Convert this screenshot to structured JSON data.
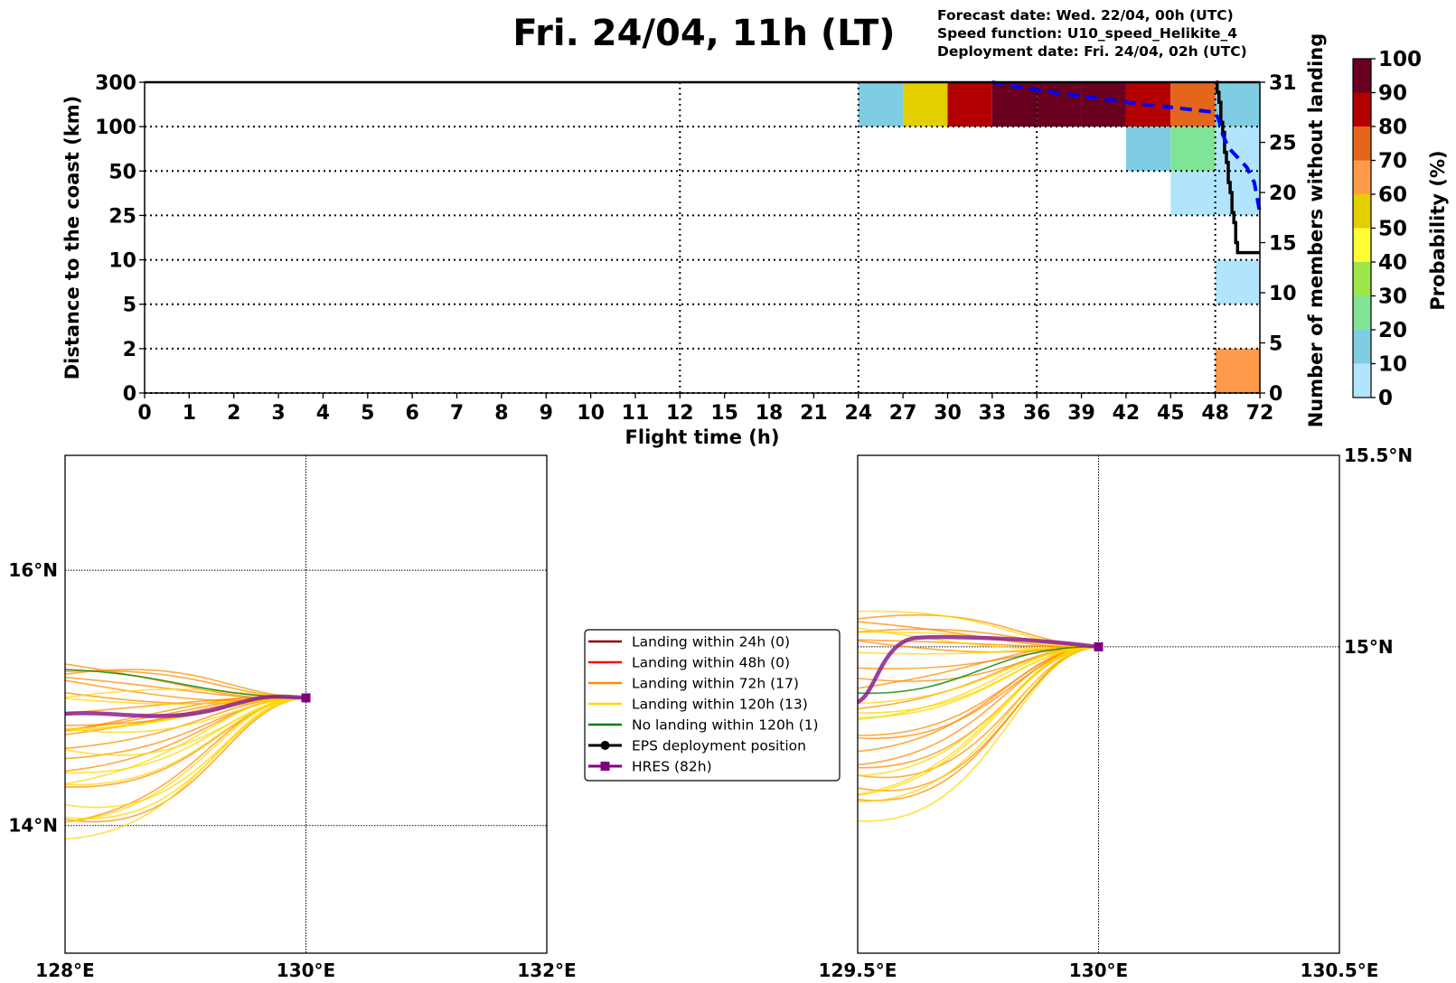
{
  "header": {
    "title": "Fri. 24/04, 11h (LT)",
    "info": [
      "Forecast date: Wed. 22/04, 00h (UTC)",
      "Speed function: U10_speed_Helikite_4",
      "Deployment date: Fri. 24/04, 02h (UTC)"
    ]
  },
  "chart_data": [
    {
      "type": "heatmap",
      "name": "landing-probability",
      "xlabel": "Flight time (h)",
      "ylabel": "Distance to the coast (km)",
      "y2label": "Number of members without landing",
      "x_ticks": [
        "0",
        "1",
        "2",
        "3",
        "4",
        "5",
        "6",
        "7",
        "8",
        "9",
        "10",
        "11",
        "12",
        "15",
        "18",
        "21",
        "24",
        "27",
        "30",
        "33",
        "36",
        "39",
        "42",
        "45",
        "48",
        "72"
      ],
      "y_ticks": [
        "0",
        "2",
        "5",
        "10",
        "25",
        "50",
        "100",
        "300"
      ],
      "y2_ticks": [
        "0",
        "5",
        "10",
        "15",
        "20",
        "25",
        "31"
      ],
      "y2_range": [
        0,
        31
      ],
      "grid": "dotted",
      "x_grid_at": [
        "12",
        "24",
        "36",
        "48"
      ],
      "cells": [
        {
          "x_bin": [
            "24",
            "27"
          ],
          "y_bin": [
            "100",
            "300"
          ],
          "prob_pct": 15
        },
        {
          "x_bin": [
            "27",
            "30"
          ],
          "y_bin": [
            "100",
            "300"
          ],
          "prob_pct": 55
        },
        {
          "x_bin": [
            "30",
            "33"
          ],
          "y_bin": [
            "100",
            "300"
          ],
          "prob_pct": 85
        },
        {
          "x_bin": [
            "33",
            "36"
          ],
          "y_bin": [
            "100",
            "300"
          ],
          "prob_pct": 95
        },
        {
          "x_bin": [
            "36",
            "39"
          ],
          "y_bin": [
            "100",
            "300"
          ],
          "prob_pct": 95
        },
        {
          "x_bin": [
            "39",
            "42"
          ],
          "y_bin": [
            "100",
            "300"
          ],
          "prob_pct": 95
        },
        {
          "x_bin": [
            "42",
            "45"
          ],
          "y_bin": [
            "100",
            "300"
          ],
          "prob_pct": 85
        },
        {
          "x_bin": [
            "45",
            "48"
          ],
          "y_bin": [
            "100",
            "300"
          ],
          "prob_pct": 75
        },
        {
          "x_bin": [
            "48",
            "72"
          ],
          "y_bin": [
            "100",
            "300"
          ],
          "prob_pct": 15
        },
        {
          "x_bin": [
            "42",
            "45"
          ],
          "y_bin": [
            "50",
            "100"
          ],
          "prob_pct": 15
        },
        {
          "x_bin": [
            "45",
            "48"
          ],
          "y_bin": [
            "50",
            "100"
          ],
          "prob_pct": 25
        },
        {
          "x_bin": [
            "48",
            "72"
          ],
          "y_bin": [
            "50",
            "100"
          ],
          "prob_pct": 5
        },
        {
          "x_bin": [
            "45",
            "48"
          ],
          "y_bin": [
            "25",
            "50"
          ],
          "prob_pct": 5
        },
        {
          "x_bin": [
            "48",
            "72"
          ],
          "y_bin": [
            "25",
            "50"
          ],
          "prob_pct": 5
        },
        {
          "x_bin": [
            "48",
            "72"
          ],
          "y_bin": [
            "5",
            "10"
          ],
          "prob_pct": 5
        },
        {
          "x_bin": [
            "48",
            "72"
          ],
          "y_bin": [
            "0",
            "2"
          ],
          "prob_pct": 65
        }
      ],
      "series": [
        {
          "name": "members-without-landing-eps",
          "style": "solid-black",
          "points": [
            [
              48.5,
              31
            ],
            [
              49,
              30
            ],
            [
              50,
              29
            ],
            [
              51,
              27
            ],
            [
              52,
              26
            ],
            [
              53,
              24
            ],
            [
              54,
              23
            ],
            [
              55,
              21
            ],
            [
              56,
              20
            ],
            [
              57,
              18
            ],
            [
              58,
              17
            ],
            [
              59,
              15
            ],
            [
              60,
              14
            ],
            [
              61,
              14
            ],
            [
              72,
              14
            ]
          ]
        },
        {
          "name": "members-without-landing-dashed",
          "style": "dashed-blue",
          "points": [
            [
              33,
              31
            ],
            [
              36,
              30.2
            ],
            [
              39,
              29.6
            ],
            [
              42,
              29
            ],
            [
              45,
              28.5
            ],
            [
              48,
              28
            ],
            [
              50,
              27.2
            ],
            [
              52,
              25.8
            ],
            [
              55,
              24.5
            ],
            [
              60,
              23.5
            ],
            [
              65,
              22.5
            ],
            [
              69,
              21
            ],
            [
              72,
              18
            ]
          ]
        }
      ],
      "colorbar": {
        "label": "Probability (%)",
        "ticks": [
          "0",
          "10",
          "20",
          "30",
          "40",
          "50",
          "60",
          "70",
          "80",
          "90",
          "100"
        ],
        "bins": [
          {
            "from": 0,
            "to": 10,
            "color": "#b2e5fb"
          },
          {
            "from": 10,
            "to": 20,
            "color": "#7fcde3"
          },
          {
            "from": 20,
            "to": 30,
            "color": "#80e497"
          },
          {
            "from": 30,
            "to": 40,
            "color": "#9de64a"
          },
          {
            "from": 40,
            "to": 50,
            "color": "#ffff33"
          },
          {
            "from": 50,
            "to": 60,
            "color": "#e3ce00"
          },
          {
            "from": 60,
            "to": 70,
            "color": "#ff9a4a"
          },
          {
            "from": 70,
            "to": 80,
            "color": "#e3661b"
          },
          {
            "from": 80,
            "to": 90,
            "color": "#b20000"
          },
          {
            "from": 90,
            "to": 100,
            "color": "#690020"
          }
        ]
      }
    },
    {
      "type": "line",
      "name": "trajectory-map-wide",
      "lon_range": [
        128,
        132
      ],
      "lat_range": [
        13.0,
        16.9
      ],
      "x_ticks": [
        "128°E",
        "130°E",
        "132°E"
      ],
      "y_ticks": [
        {
          "lat": 16,
          "label": "16°N"
        },
        {
          "lat": 14,
          "label": "14°N"
        }
      ],
      "grid_lon": [
        130
      ],
      "grid_lat": [
        16,
        14
      ],
      "deployment": [
        130.0,
        15.0
      ]
    },
    {
      "type": "line",
      "name": "trajectory-map-zoom",
      "lon_range": [
        129.5,
        130.5
      ],
      "lat_range": [
        14.2,
        15.5
      ],
      "x_ticks": [
        "129.5°E",
        "130°E",
        "130.5°E"
      ],
      "y_ticks": [
        {
          "lat": 15.5,
          "label": "15.5°N"
        },
        {
          "lat": 15,
          "label": "15°N"
        }
      ],
      "grid_lon": [
        130
      ],
      "grid_lat": [
        15
      ],
      "deployment": [
        130.0,
        15.0
      ]
    }
  ],
  "legend": {
    "items": [
      {
        "label": "Landing within 24h (0)",
        "color": "#8b0000",
        "marker": "none"
      },
      {
        "label": "Landing within 48h (0)",
        "color": "#ff0000",
        "marker": "none"
      },
      {
        "label": "Landing within 72h (17)",
        "color": "#ff8c00",
        "marker": "none"
      },
      {
        "label": "Landing within 120h (13)",
        "color": "#ffd700",
        "marker": "none"
      },
      {
        "label": "No landing within 120h (1)",
        "color": "#008000",
        "marker": "none"
      },
      {
        "label": "EPS deployment position",
        "color": "#000000",
        "marker": "circle"
      },
      {
        "label": "HRES (82h)",
        "color": "#800080",
        "marker": "square"
      }
    ]
  },
  "trajectories": {
    "orange_count": 17,
    "yellow_count": 13,
    "green_count": 1,
    "hres_color": "#8b1f8e"
  }
}
